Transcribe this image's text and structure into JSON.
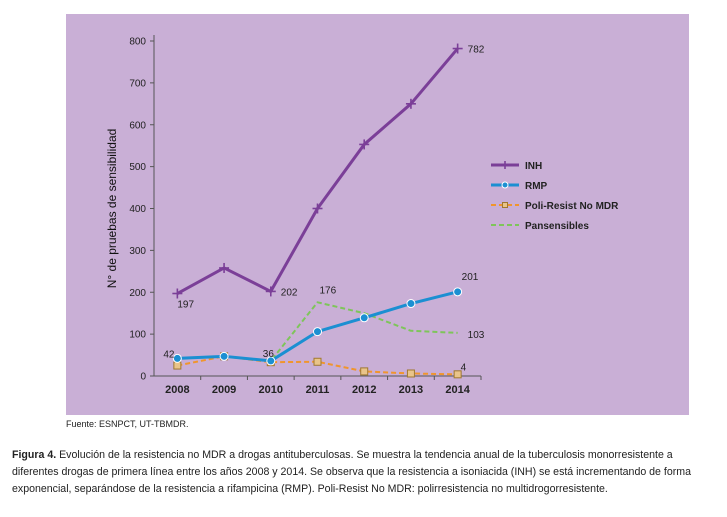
{
  "colors": {
    "panel_bg": "#c9afd6",
    "INH": "#7b3f98",
    "RMP": "#1b8fd2",
    "Poli-Resist No MDR": "#f0952d",
    "Pansensibles": "#7ec55a"
  },
  "chart_data": {
    "type": "line",
    "ylabel": "N° de pruebas de sensibilidad",
    "xlabel": "",
    "x": [
      "2008",
      "2009",
      "2010",
      "2011",
      "2012",
      "2013",
      "2014"
    ],
    "ylim": [
      0,
      800
    ],
    "yticks": [
      0,
      100,
      200,
      300,
      400,
      500,
      600,
      700,
      800
    ],
    "legend_position": "right",
    "series": [
      {
        "name": "INH",
        "values": [
          197,
          258,
          202,
          400,
          553,
          650,
          782
        ],
        "style": "solid",
        "marker": "plus"
      },
      {
        "name": "RMP",
        "values": [
          42,
          47,
          36,
          106,
          139,
          173,
          201
        ],
        "style": "solid",
        "marker": "circle"
      },
      {
        "name": "Poli-Resist No MDR",
        "values": [
          25,
          47,
          33,
          34,
          11,
          6,
          4
        ],
        "style": "dashed",
        "marker": "square"
      },
      {
        "name": "Pansensibles",
        "values": [
          42,
          47,
          36,
          176,
          150,
          108,
          103
        ],
        "style": "dashed",
        "marker": "none"
      }
    ],
    "data_labels": [
      {
        "series": "INH",
        "x": "2008",
        "text": "197"
      },
      {
        "series": "INH",
        "x": "2010",
        "text": "202"
      },
      {
        "series": "INH",
        "x": "2014",
        "text": "782"
      },
      {
        "series": "RMP",
        "x": "2008",
        "text": "42"
      },
      {
        "series": "RMP",
        "x": "2010",
        "text": "36"
      },
      {
        "series": "RMP",
        "x": "2014",
        "text": "201"
      },
      {
        "series": "Pansensibles",
        "x": "2011",
        "text": "176"
      },
      {
        "series": "Pansensibles",
        "x": "2014",
        "text": "103"
      },
      {
        "series": "Poli-Resist No MDR",
        "x": "2014",
        "text": "4"
      }
    ]
  },
  "source_text": "Fuente: ESNPCT, UT-TBMDR.",
  "caption": {
    "label": "Figura 4.",
    "text": " Evolución de la resistencia no MDR a drogas antituberculosas. Se muestra la tendencia anual de la tuberculosis monorresistente a diferentes drogas de primera línea entre los años 2008 y 2014. Se observa que la resistencia a isoniacida (INH) se está incrementando de forma exponencial, separándose de la resistencia a rifampicina (RMP). Poli-Resist No MDR: polirresistencia no multidrogorresistente."
  }
}
